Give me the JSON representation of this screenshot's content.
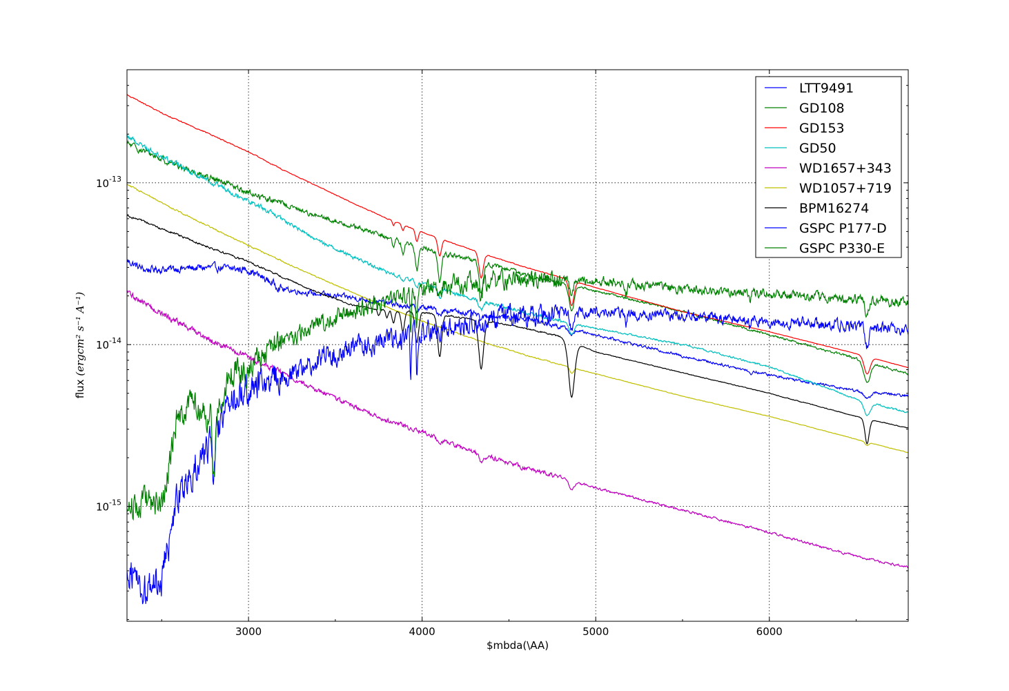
{
  "chart_data": {
    "type": "line",
    "xlabel": "$\u0007mbda(\\AA)",
    "ylabel": "flux",
    "ylabel_units": "(ergcm² s⁻¹ A⁻¹)",
    "x_scale": "linear",
    "y_scale": "log",
    "xlim": [
      2300,
      6800
    ],
    "ylim": [
      1.95e-16,
      5e-13
    ],
    "xticks": [
      3000,
      4000,
      5000,
      6000
    ],
    "xtick_labels": [
      "3000",
      "4000",
      "5000",
      "6000"
    ],
    "yticks": [
      1e-15,
      1e-14,
      1e-13
    ],
    "ytick_labels": [
      {
        "base": "10",
        "exp": "-15"
      },
      {
        "base": "10",
        "exp": "-14"
      },
      {
        "base": "10",
        "exp": "-13"
      }
    ],
    "grid": true,
    "legend_position": "top-right",
    "series": [
      {
        "name": "LTT9491",
        "color": "#0000ff",
        "noise": 0.03,
        "x": [
          2300,
          2400,
          2600,
          2800,
          3000,
          3200,
          3400,
          3600,
          3800,
          4000,
          4200,
          4400,
          4600,
          5000,
          5500,
          6000,
          6500,
          6800
        ],
        "y": [
          3.3e-14,
          2.9e-14,
          2.95e-14,
          3e-14,
          2.9e-14,
          2.2e-14,
          2.05e-14,
          1.95e-14,
          1.8e-14,
          1.7e-14,
          1.6e-14,
          1.5e-14,
          1.45e-14,
          1.15e-14,
          8.5e-15,
          6.5e-15,
          5.2e-15,
          4.8e-15
        ],
        "lines": [
          [
            3890,
            0.05,
            15
          ],
          [
            3970,
            0.05,
            15
          ],
          [
            4101,
            0.06,
            20
          ],
          [
            4340,
            0.06,
            20
          ],
          [
            4861,
            0.08,
            20
          ],
          [
            5890,
            0.05,
            12
          ],
          [
            6563,
            0.1,
            25
          ]
        ]
      },
      {
        "name": "GD108",
        "color": "#008000",
        "noise": 0.025,
        "x": [
          2300,
          2500,
          2800,
          3000,
          3200,
          3400,
          3600,
          3800,
          4000,
          4200,
          4400,
          4600,
          4800,
          5000,
          5500,
          6000,
          6500,
          6800
        ],
        "y": [
          1.75e-13,
          1.4e-13,
          1.05e-13,
          8.7e-14,
          7.4e-14,
          6.2e-14,
          5.4e-14,
          4.6e-14,
          4e-14,
          3.5e-14,
          3.1e-14,
          2.7e-14,
          2.4e-14,
          2.15e-14,
          1.6e-14,
          1.15e-14,
          8.2e-15,
          6.6e-15
        ],
        "lines": [
          [
            3835,
            0.12,
            10
          ],
          [
            3889,
            0.15,
            12
          ],
          [
            3970,
            0.3,
            14
          ],
          [
            4101,
            0.35,
            16
          ],
          [
            4340,
            0.35,
            18
          ],
          [
            4861,
            0.3,
            22
          ],
          [
            6563,
            0.25,
            28
          ]
        ]
      },
      {
        "name": "GD153",
        "color": "#ff0000",
        "noise": 0.004,
        "x": [
          2300,
          2500,
          2800,
          3000,
          3200,
          3400,
          3600,
          3800,
          4000,
          4200,
          4400,
          4600,
          4800,
          5000,
          5500,
          6000,
          6500,
          6800
        ],
        "y": [
          3.5e-13,
          2.7e-13,
          1.95e-13,
          1.55e-13,
          1.2e-13,
          9.5e-14,
          7.5e-14,
          6e-14,
          4.95e-14,
          4.15e-14,
          3.5e-14,
          3e-14,
          2.6e-14,
          2.25e-14,
          1.6e-14,
          1.2e-14,
          8.8e-15,
          7.2e-15
        ],
        "lines": [
          [
            3835,
            0.06,
            8
          ],
          [
            3889,
            0.08,
            10
          ],
          [
            3970,
            0.15,
            12
          ],
          [
            4101,
            0.22,
            15
          ],
          [
            4340,
            0.3,
            18
          ],
          [
            4861,
            0.3,
            20
          ],
          [
            6563,
            0.22,
            25
          ]
        ]
      },
      {
        "name": "GD50",
        "color": "#00bfbf",
        "noise": 0.02,
        "x": [
          2300,
          2500,
          2800,
          3000,
          3200,
          3400,
          3600,
          3800,
          4000,
          4200,
          4400,
          4600,
          4800,
          5000,
          5500,
          6000,
          6500,
          6800
        ],
        "y": [
          1.95e-13,
          1.45e-13,
          1e-13,
          7.8e-14,
          5.9e-14,
          4.4e-14,
          3.5e-14,
          2.8e-14,
          2.4e-14,
          2.05e-14,
          1.8e-14,
          1.58e-14,
          1.4e-14,
          1.26e-14,
          1e-14,
          7.3e-15,
          4.6e-15,
          3.8e-15
        ],
        "lines": [
          [
            3889,
            0.06,
            12
          ],
          [
            3970,
            0.08,
            14
          ],
          [
            4101,
            0.12,
            16
          ],
          [
            4340,
            0.12,
            18
          ],
          [
            4861,
            0.15,
            20
          ],
          [
            6563,
            0.18,
            25
          ]
        ]
      },
      {
        "name": "WD1657+343",
        "color": "#bf00bf",
        "noise": 0.025,
        "x": [
          2300,
          2500,
          2800,
          3000,
          3200,
          3400,
          3600,
          3800,
          4000,
          4200,
          4400,
          4600,
          4800,
          5000,
          5500,
          6000,
          6500,
          6800
        ],
        "y": [
          2.1e-14,
          1.55e-14,
          1.05e-14,
          8.3e-15,
          6.6e-15,
          5.2e-15,
          4.2e-15,
          3.4e-15,
          2.9e-15,
          2.35e-15,
          2e-15,
          1.72e-15,
          1.5e-15,
          1.3e-15,
          9.5e-16,
          6.9e-16,
          4.9e-16,
          4.2e-16
        ],
        "lines": [
          [
            4101,
            0.08,
            15
          ],
          [
            4340,
            0.1,
            18
          ],
          [
            4861,
            0.12,
            20
          ]
        ]
      },
      {
        "name": "WD1057+719",
        "color": "#bfbf00",
        "noise": 0.006,
        "x": [
          2300,
          2500,
          2800,
          3000,
          3200,
          3400,
          3600,
          3800,
          4000,
          4200,
          4400,
          4600,
          4800,
          5000,
          5500,
          6000,
          6500,
          6800
        ],
        "y": [
          9.8e-14,
          7.5e-14,
          5.2e-14,
          4.1e-14,
          3.25e-14,
          2.6e-14,
          2.1e-14,
          1.7e-14,
          1.4e-14,
          1.18e-14,
          1e-14,
          8.6e-15,
          7.5e-15,
          6.6e-15,
          4.8e-15,
          3.6e-15,
          2.6e-15,
          2.15e-15
        ],
        "lines": [
          [
            4861,
            0.08,
            15
          ],
          [
            6563,
            0.05,
            15
          ]
        ]
      },
      {
        "name": "BPM16274",
        "color": "#000000",
        "noise": 0.008,
        "x": [
          2300,
          2500,
          2800,
          3000,
          3200,
          3400,
          3600,
          3800,
          4000,
          4200,
          4400,
          4600,
          4800,
          5000,
          5500,
          6000,
          6500,
          6800
        ],
        "y": [
          6.3e-14,
          5.2e-14,
          3.9e-14,
          3.25e-14,
          2.6e-14,
          2.1e-14,
          1.75e-14,
          1.62e-14,
          1.58e-14,
          1.48e-14,
          1.38e-14,
          1.26e-14,
          1.12e-14,
          9e-15,
          6.7e-15,
          5e-15,
          3.6e-15,
          3.05e-15
        ],
        "lines": [
          [
            3750,
            0.08,
            10
          ],
          [
            3797,
            0.1,
            10
          ],
          [
            3835,
            0.15,
            12
          ],
          [
            3889,
            0.25,
            14
          ],
          [
            3970,
            0.35,
            16
          ],
          [
            4101,
            0.45,
            18
          ],
          [
            4340,
            0.5,
            22
          ],
          [
            4861,
            0.55,
            28
          ],
          [
            6563,
            0.3,
            18
          ]
        ]
      },
      {
        "name": "GSPC P177-D",
        "color": "#0000ff",
        "noise": 0.12,
        "x": [
          2300,
          2400,
          2500,
          2600,
          2700,
          2800,
          2900,
          3000,
          3100,
          3200,
          3300,
          3400,
          3600,
          3800,
          4000,
          4200,
          4500,
          5000,
          5500,
          6000,
          6500,
          6800
        ],
        "y": [
          4.5e-16,
          3e-16,
          3.6e-16,
          1.2e-15,
          1.9e-15,
          2.6e-15,
          4.7e-15,
          5.2e-15,
          5.8e-15,
          6.2e-15,
          7e-15,
          8.2e-15,
          9.5e-15,
          1.05e-14,
          1.18e-14,
          1.35e-14,
          1.5e-14,
          1.6e-14,
          1.5e-14,
          1.4e-14,
          1.3e-14,
          1.22e-14
        ],
        "lines": [
          [
            2800,
            0.5,
            12
          ],
          [
            3934,
            0.5,
            6
          ],
          [
            3969,
            0.45,
            6
          ],
          [
            4101,
            0.15,
            12
          ],
          [
            4340,
            0.2,
            14
          ],
          [
            4861,
            0.2,
            16
          ],
          [
            5175,
            0.15,
            10
          ],
          [
            5890,
            0.1,
            8
          ],
          [
            6563,
            0.25,
            14
          ]
        ]
      },
      {
        "name": "GSPC P330-E",
        "color": "#008000",
        "noise": 0.1,
        "x": [
          2300,
          2400,
          2500,
          2600,
          2700,
          2800,
          2900,
          3000,
          3100,
          3200,
          3300,
          3400,
          3600,
          3800,
          4000,
          4200,
          4500,
          5000,
          5500,
          6000,
          6500,
          6800
        ],
        "y": [
          1e-15,
          1.1e-15,
          1e-15,
          4e-15,
          4.4e-15,
          3.5e-15,
          6.5e-15,
          7.5e-15,
          9.5e-15,
          1.05e-14,
          1.15e-14,
          1.35e-14,
          1.6e-14,
          1.9e-14,
          2.2e-14,
          2.35e-14,
          2.5e-14,
          2.5e-14,
          2.2e-14,
          2.05e-14,
          1.9e-14,
          1.82e-14
        ],
        "lines": [
          [
            2800,
            0.6,
            12
          ],
          [
            3934,
            0.5,
            6
          ],
          [
            3969,
            0.45,
            6
          ],
          [
            4101,
            0.15,
            12
          ],
          [
            4340,
            0.2,
            14
          ],
          [
            4861,
            0.2,
            16
          ],
          [
            5175,
            0.15,
            10
          ],
          [
            5890,
            0.1,
            8
          ],
          [
            6563,
            0.22,
            14
          ]
        ]
      }
    ]
  }
}
